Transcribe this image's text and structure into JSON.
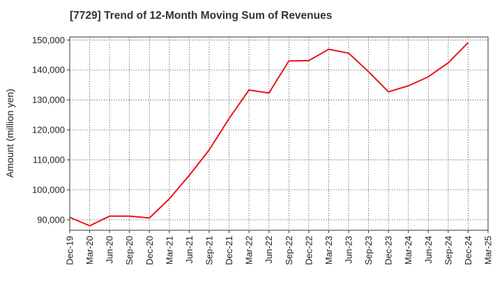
{
  "chart_data": {
    "type": "line",
    "title": "[7729]  Trend of 12-Month Moving Sum of Revenues",
    "xlabel": "",
    "ylabel": "Amount (million yen)",
    "ylim": [
      86500,
      151000
    ],
    "y_ticks": [
      90000,
      100000,
      110000,
      120000,
      130000,
      140000,
      150000
    ],
    "y_tick_labels": [
      "90,000",
      "100,000",
      "110,000",
      "120,000",
      "130,000",
      "140,000",
      "150,000"
    ],
    "x_tick_labels": [
      "Dec-19",
      "Mar-20",
      "Jun-20",
      "Sep-20",
      "Dec-20",
      "Mar-21",
      "Jun-21",
      "Sep-21",
      "Dec-21",
      "Mar-22",
      "Jun-22",
      "Sep-22",
      "Dec-22",
      "Mar-23",
      "Jun-23",
      "Sep-23",
      "Dec-23",
      "Mar-24",
      "Jun-24",
      "Sep-24",
      "Dec-24",
      "Mar-25"
    ],
    "grid": true,
    "series": [
      {
        "color": "#e8141b",
        "x": [
          "Dec-19",
          "Mar-20",
          "Jun-20",
          "Sep-20",
          "Dec-20",
          "Mar-21",
          "Jun-21",
          "Sep-21",
          "Dec-21",
          "Mar-22",
          "Jun-22",
          "Sep-22",
          "Dec-22",
          "Mar-23",
          "Jun-23",
          "Sep-23",
          "Dec-23",
          "Mar-24",
          "Jun-24",
          "Sep-24",
          "Dec-24"
        ],
        "values": [
          90800,
          88000,
          91200,
          91200,
          90600,
          97000,
          104800,
          113300,
          123800,
          133300,
          132300,
          143000,
          143100,
          146900,
          145600,
          139400,
          132700,
          134700,
          137700,
          142400,
          149100
        ]
      }
    ]
  }
}
